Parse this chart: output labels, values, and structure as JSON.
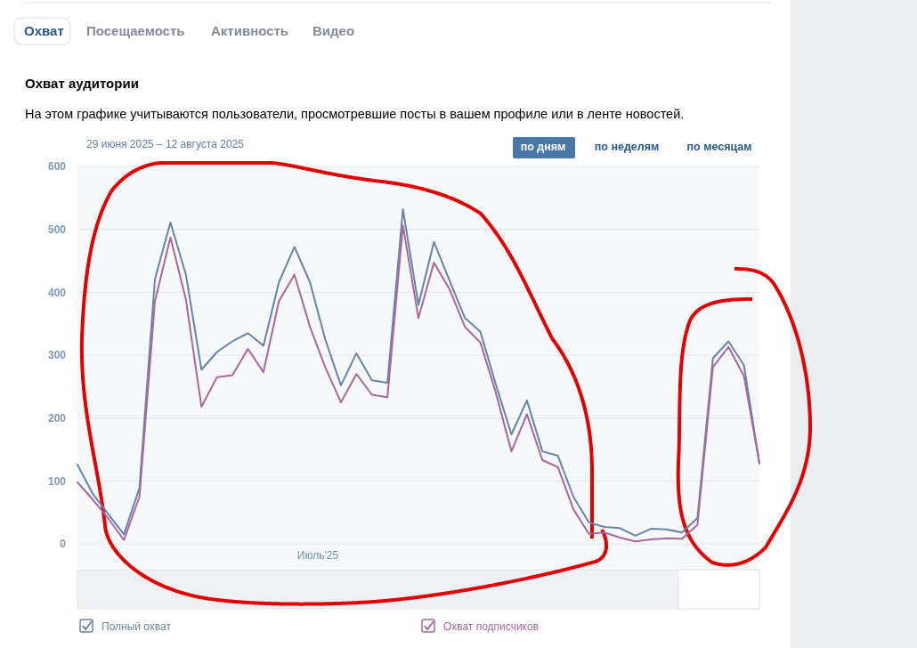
{
  "chart_data": {
    "type": "line",
    "title": "Охват аудитории",
    "subtitle": "На этом графике учитываются пользователи, просмотревшие посты в вашем профиле или в ленте новостей.",
    "annotations": [
      "Охват",
      "Посещаемость",
      "Активность",
      "Видео",
      "29 июня 2025 – 12 августа 2025",
      "по дням",
      "по неделям",
      "по месяцам",
      "Июль'25"
    ],
    "categories": [
      null,
      null,
      null,
      null,
      null,
      null,
      null,
      null,
      null,
      null,
      null,
      null,
      null,
      null,
      null,
      null,
      null,
      null,
      null,
      null,
      null,
      null,
      null,
      null,
      null,
      null,
      null,
      null,
      null,
      null,
      null,
      null,
      null,
      null,
      null,
      null,
      null,
      null,
      null,
      null,
      null,
      null,
      null,
      null,
      null
    ],
    "series": [
      {
        "name": "Полный охват",
        "color": "#6585a8",
        "values": [
          126,
          79,
          47,
          15,
          89,
          421,
          511,
          428,
          277,
          305,
          322,
          335,
          315,
          416,
          472,
          416,
          324,
          252,
          303,
          260,
          256,
          532,
          380,
          480,
          419,
          359,
          337,
          253,
          174,
          228,
          147,
          140,
          75,
          34,
          27,
          25,
          13,
          24,
          23,
          18,
          41,
          295,
          322,
          284,
          128
        ]
      },
      {
        "name": "Охват подписчиков",
        "color": "#a8679d",
        "values": [
          98,
          70,
          40,
          6,
          75,
          386,
          487,
          388,
          218,
          265,
          268,
          310,
          273,
          386,
          428,
          345,
          280,
          225,
          270,
          237,
          233,
          506,
          359,
          447,
          405,
          345,
          320,
          240,
          147,
          206,
          133,
          122,
          55,
          16,
          18,
          10,
          4,
          7,
          9,
          8,
          30,
          281,
          313,
          267,
          128
        ]
      }
    ],
    "ylim": [
      0,
      600
    ],
    "yticks": [
      0,
      100,
      200,
      300,
      400,
      500,
      600
    ],
    "grid": "y",
    "legend": "bottom"
  }
}
